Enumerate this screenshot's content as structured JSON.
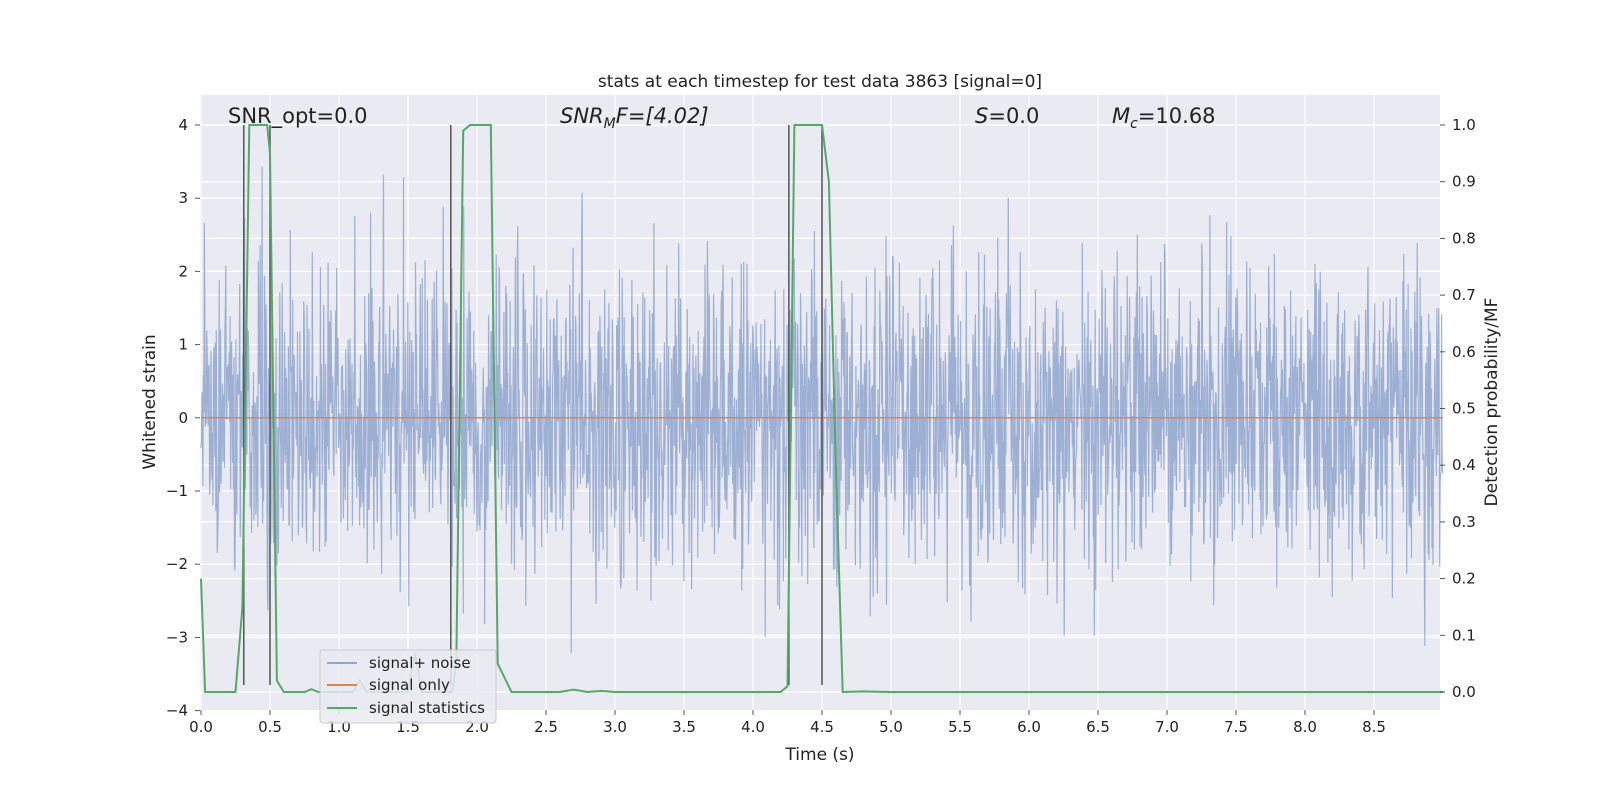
{
  "chart_data": {
    "type": "line",
    "title": "stats at each timestep for test data 3863 [signal=0]",
    "xlabel": "Time (s)",
    "ylabel": "Whitened strain",
    "ylabel_right": "Detection probability/MF",
    "xlim": [
      0.0,
      9.0
    ],
    "ylim": [
      -4.0,
      4.0
    ],
    "ylim_right": [
      -0.04,
      1.04
    ],
    "grid": true,
    "x_ticks": [
      "0.0",
      "0.5",
      "1.0",
      "1.5",
      "2.0",
      "2.5",
      "3.0",
      "3.5",
      "4.0",
      "4.5",
      "5.0",
      "5.5",
      "6.0",
      "6.5",
      "7.0",
      "7.5",
      "8.0",
      "8.5"
    ],
    "y_ticks": [
      "4",
      "3",
      "2",
      "1",
      "0",
      "−1",
      "−2",
      "−3",
      "−4"
    ],
    "y_ticks_right": [
      "1.0",
      "0.9",
      "0.8",
      "0.7",
      "0.6",
      "0.5",
      "0.4",
      "0.3",
      "0.2",
      "0.1",
      "0.0"
    ],
    "annotations": {
      "snr_opt": "SNR_opt=0.0",
      "snr_mf_name": "SNR",
      "snr_mf_sub": "M",
      "snr_mf_rest": "F=[4.02]",
      "s_name": "S",
      "s_rest": "=0.0",
      "mc_name": "M",
      "mc_sub": "c",
      "mc_rest": "=10.68"
    },
    "legend_placement": "bottom-left",
    "series": [
      {
        "name": "signal+ noise",
        "color": "#8fa6cf",
        "axis": "left",
        "description": "whitened noise strain, approximately unit variance, values mostly within -3.7 to 3.8"
      },
      {
        "name": "signal only",
        "color": "#dd8452",
        "axis": "left",
        "x": [
          0.0,
          9.0
        ],
        "y": [
          0.0,
          0.0
        ]
      },
      {
        "name": "signal statistics",
        "color": "#55a868",
        "axis": "right",
        "x": [
          0.0,
          0.03,
          0.25,
          0.3,
          0.35,
          0.48,
          0.5,
          0.55,
          0.6,
          0.75,
          0.8,
          0.85,
          1.1,
          1.15,
          1.2,
          1.5,
          1.55,
          1.6,
          1.82,
          1.85,
          1.9,
          1.95,
          2.1,
          2.15,
          2.25,
          2.6,
          2.7,
          2.8,
          2.9,
          3.0,
          4.2,
          4.25,
          4.3,
          4.35,
          4.45,
          4.5,
          4.55,
          4.6,
          4.65,
          4.8,
          5.0,
          9.0
        ],
        "y": [
          0.2,
          0.0,
          0.0,
          0.15,
          1.0,
          1.0,
          0.95,
          0.02,
          0.0,
          0.0,
          0.005,
          0.0,
          0.0,
          0.02,
          0.0,
          0.0,
          0.07,
          0.0,
          0.0,
          0.05,
          0.99,
          1.0,
          1.0,
          0.05,
          0.0,
          0.0,
          0.004,
          0.0,
          0.002,
          0.0,
          0.0,
          0.01,
          1.0,
          1.0,
          1.0,
          1.0,
          0.9,
          0.4,
          0.0,
          0.001,
          0.0,
          0.0
        ]
      }
    ],
    "vlines": {
      "color": "#555555",
      "x": [
        0.31,
        0.5,
        1.81,
        4.26,
        4.5
      ],
      "y_range": [
        -3.65,
        4.0
      ]
    }
  }
}
